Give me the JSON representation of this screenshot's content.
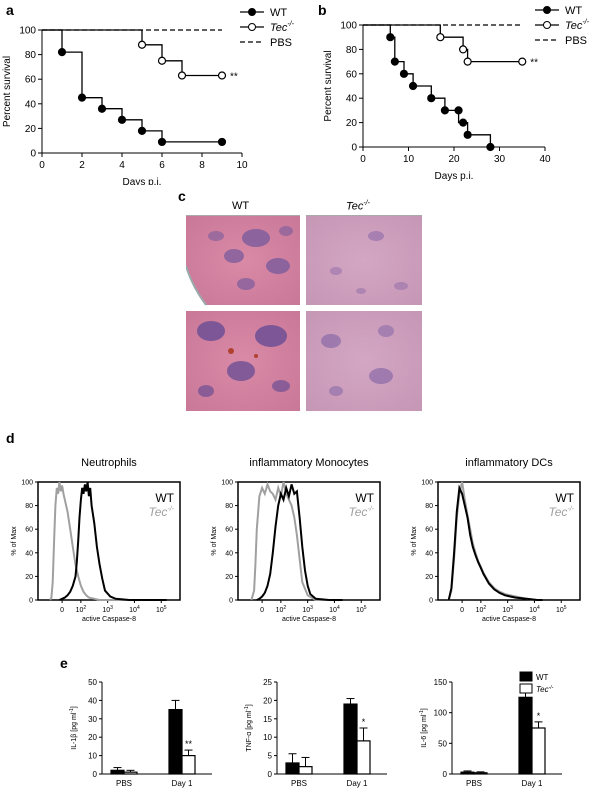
{
  "panel_labels": {
    "a": "a",
    "b": "b",
    "c": "c",
    "d": "d",
    "e": "e"
  },
  "legend_km": {
    "wt": "WT",
    "tec": "Tec",
    "tec_sup": "-/-",
    "pbs": "PBS"
  },
  "chart_data": [
    {
      "id": "a",
      "type": "line",
      "title": "",
      "xlabel": "Days p.i.",
      "ylabel": "Percent survival",
      "xlim": [
        0,
        10
      ],
      "ylim": [
        0,
        100
      ],
      "xticks": [
        0,
        2,
        4,
        6,
        8,
        10
      ],
      "yticks": [
        0,
        20,
        40,
        60,
        80,
        100
      ],
      "significance": "**",
      "series": [
        {
          "name": "WT",
          "style": "solid-filled",
          "steps": [
            [
              0,
              100
            ],
            [
              1,
              100
            ],
            [
              1,
              82
            ],
            [
              2,
              82
            ],
            [
              2,
              45
            ],
            [
              3,
              45
            ],
            [
              3,
              36
            ],
            [
              4,
              36
            ],
            [
              4,
              27
            ],
            [
              5,
              27
            ],
            [
              5,
              18
            ],
            [
              6,
              18
            ],
            [
              6,
              9
            ],
            [
              9,
              9
            ]
          ],
          "points": [
            [
              1,
              82
            ],
            [
              2,
              45
            ],
            [
              3,
              36
            ],
            [
              4,
              27
            ],
            [
              5,
              18
            ],
            [
              6,
              9
            ],
            [
              9,
              9
            ]
          ]
        },
        {
          "name": "Tec-/-",
          "style": "solid-open",
          "steps": [
            [
              0,
              100
            ],
            [
              5,
              100
            ],
            [
              5,
              88
            ],
            [
              6,
              88
            ],
            [
              6,
              75
            ],
            [
              7,
              75
            ],
            [
              7,
              63
            ],
            [
              9,
              63
            ]
          ],
          "points": [
            [
              5,
              88
            ],
            [
              6,
              75
            ],
            [
              7,
              63
            ],
            [
              9,
              63
            ]
          ]
        },
        {
          "name": "PBS",
          "style": "dashed",
          "steps": [
            [
              0,
              100
            ],
            [
              9,
              100
            ]
          ],
          "points": []
        }
      ]
    },
    {
      "id": "b",
      "type": "line",
      "title": "",
      "xlabel": "Days p.i.",
      "ylabel": "Percent survival",
      "xlim": [
        0,
        40
      ],
      "ylim": [
        0,
        100
      ],
      "xticks": [
        0,
        10,
        20,
        30,
        40
      ],
      "yticks": [
        0,
        20,
        40,
        60,
        80,
        100
      ],
      "significance": "**",
      "series": [
        {
          "name": "WT",
          "style": "solid-filled",
          "steps": [
            [
              0,
              100
            ],
            [
              6,
              100
            ],
            [
              6,
              90
            ],
            [
              7,
              90
            ],
            [
              7,
              70
            ],
            [
              9,
              70
            ],
            [
              9,
              60
            ],
            [
              11,
              60
            ],
            [
              11,
              50
            ],
            [
              15,
              50
            ],
            [
              15,
              40
            ],
            [
              18,
              40
            ],
            [
              18,
              30
            ],
            [
              21,
              30
            ],
            [
              21,
              20
            ],
            [
              23,
              20
            ],
            [
              23,
              10
            ],
            [
              28,
              10
            ],
            [
              28,
              0
            ]
          ],
          "points": [
            [
              6,
              90
            ],
            [
              7,
              70
            ],
            [
              9,
              60
            ],
            [
              11,
              50
            ],
            [
              15,
              40
            ],
            [
              18,
              30
            ],
            [
              21,
              30
            ],
            [
              22,
              20
            ],
            [
              23,
              10
            ],
            [
              28,
              0
            ]
          ]
        },
        {
          "name": "Tec-/-",
          "style": "solid-open",
          "steps": [
            [
              0,
              100
            ],
            [
              17,
              100
            ],
            [
              17,
              90
            ],
            [
              22,
              90
            ],
            [
              22,
              80
            ],
            [
              23,
              80
            ],
            [
              23,
              70
            ],
            [
              35,
              70
            ]
          ],
          "points": [
            [
              17,
              90
            ],
            [
              22,
              80
            ],
            [
              23,
              70
            ],
            [
              35,
              70
            ]
          ]
        },
        {
          "name": "PBS",
          "style": "dashed",
          "steps": [
            [
              0,
              100
            ],
            [
              35,
              100
            ]
          ],
          "points": []
        }
      ]
    },
    {
      "id": "d1",
      "type": "line",
      "title": "Neutrophils",
      "xlabel": "active Caspase-8",
      "ylabel": "% of Max",
      "yticks": [
        0,
        20,
        40,
        60,
        80,
        100
      ],
      "xtick_labels": [
        {
          "base": "0",
          "sup": ""
        },
        {
          "base": "10",
          "sup": "2"
        },
        {
          "base": "10",
          "sup": "3"
        },
        {
          "base": "10",
          "sup": "4"
        },
        {
          "base": "10",
          "sup": "5"
        }
      ],
      "legend": [
        {
          "name": "WT",
          "color": "#000000"
        },
        {
          "name": "Tec",
          "sup": "-/-",
          "color": "#a0a0a0"
        }
      ],
      "series": [
        {
          "name": "WT",
          "color": "#000000",
          "x": [
            -0.1,
            0,
            0.1,
            0.2,
            0.3,
            0.4,
            0.5,
            0.55,
            0.6,
            0.65,
            0.7,
            0.75,
            0.8,
            0.85,
            0.9,
            0.95,
            1.0,
            1.05,
            1.1,
            1.2,
            1.3,
            1.4,
            1.5,
            1.6,
            1.8,
            2.0,
            2.5,
            3.0,
            3.5,
            3.9
          ],
          "y": [
            0,
            1,
            2,
            4,
            7,
            12,
            20,
            32,
            50,
            70,
            85,
            95,
            90,
            98,
            92,
            100,
            88,
            95,
            80,
            65,
            45,
            30,
            18,
            8,
            3,
            1,
            0,
            0,
            0,
            0
          ]
        },
        {
          "name": "Tec-/-",
          "color": "#a0a0a0",
          "x": [
            -0.45,
            -0.4,
            -0.35,
            -0.3,
            -0.25,
            -0.2,
            -0.15,
            -0.1,
            -0.05,
            0,
            0.05,
            0.1,
            0.2,
            0.3,
            0.4,
            0.5,
            0.6,
            0.7,
            0.8,
            0.9,
            1.0,
            1.2,
            1.4,
            1.6,
            2.0,
            2.5,
            3.0
          ],
          "y": [
            0,
            2,
            15,
            50,
            80,
            95,
            90,
            100,
            92,
            97,
            90,
            85,
            75,
            60,
            45,
            30,
            20,
            12,
            7,
            4,
            2,
            1,
            0,
            0,
            0,
            0,
            0
          ]
        }
      ]
    },
    {
      "id": "d2",
      "type": "line",
      "title": "inflammatory Monocytes",
      "xlabel": "active Caspase-8",
      "ylabel": "% of Max",
      "yticks": [
        0,
        20,
        40,
        60,
        80,
        100
      ],
      "xtick_labels": [
        {
          "base": "0",
          "sup": ""
        },
        {
          "base": "10",
          "sup": "2"
        },
        {
          "base": "10",
          "sup": "3"
        },
        {
          "base": "10",
          "sup": "4"
        },
        {
          "base": "10",
          "sup": "5"
        }
      ],
      "legend": [
        {
          "name": "WT",
          "color": "#000000"
        },
        {
          "name": "Tec",
          "sup": "-/-",
          "color": "#a0a0a0"
        }
      ],
      "series": [
        {
          "name": "WT",
          "color": "#000000",
          "x": [
            -0.2,
            -0.1,
            0,
            0.1,
            0.2,
            0.3,
            0.4,
            0.5,
            0.6,
            0.7,
            0.8,
            0.9,
            1.0,
            1.1,
            1.2,
            1.3,
            1.4,
            1.5,
            1.6,
            1.7,
            1.8,
            2.0,
            2.5,
            3.0
          ],
          "y": [
            0,
            1,
            3,
            6,
            12,
            22,
            40,
            62,
            80,
            90,
            85,
            95,
            88,
            98,
            90,
            92,
            70,
            45,
            25,
            12,
            5,
            1,
            0,
            0
          ]
        },
        {
          "name": "Tec-/-",
          "color": "#a0a0a0",
          "x": [
            -0.4,
            -0.3,
            -0.25,
            -0.2,
            -0.1,
            0,
            0.1,
            0.2,
            0.3,
            0.4,
            0.5,
            0.6,
            0.7,
            0.8,
            0.9,
            1.0,
            1.1,
            1.2,
            1.3,
            1.4,
            1.5,
            1.7,
            2.0,
            2.5
          ],
          "y": [
            0,
            8,
            30,
            60,
            88,
            95,
            90,
            98,
            92,
            90,
            85,
            95,
            88,
            100,
            90,
            85,
            80,
            70,
            55,
            35,
            15,
            4,
            0,
            0
          ]
        }
      ]
    },
    {
      "id": "d3",
      "type": "line",
      "title": "inflammatory DCs",
      "xlabel": "active Caspase-8",
      "ylabel": "% of Max",
      "yticks": [
        0,
        20,
        40,
        60,
        80,
        100
      ],
      "xtick_labels": [
        {
          "base": "0",
          "sup": ""
        },
        {
          "base": "10",
          "sup": "2"
        },
        {
          "base": "10",
          "sup": "3"
        },
        {
          "base": "10",
          "sup": "4"
        },
        {
          "base": "10",
          "sup": "5"
        }
      ],
      "legend": [
        {
          "name": "WT",
          "color": "#000000"
        },
        {
          "name": "Tec",
          "sup": "-/-",
          "color": "#a0a0a0"
        }
      ],
      "series": [
        {
          "name": "WT",
          "color": "#000000",
          "x": [
            -0.5,
            -0.4,
            -0.3,
            -0.2,
            -0.1,
            0,
            0.1,
            0.2,
            0.3,
            0.4,
            0.5,
            0.6,
            0.7,
            0.8,
            0.9,
            1.0,
            1.2,
            1.4,
            1.6,
            1.8,
            2.0,
            2.4,
            2.8,
            3.0
          ],
          "y": [
            0,
            10,
            40,
            75,
            95,
            90,
            80,
            70,
            55,
            45,
            38,
            32,
            27,
            22,
            18,
            14,
            9,
            6,
            4,
            3,
            2,
            1,
            0,
            0
          ]
        },
        {
          "name": "Tec-/-",
          "color": "#a0a0a0",
          "x": [
            -0.5,
            -0.4,
            -0.3,
            -0.2,
            -0.1,
            0,
            0.1,
            0.2,
            0.3,
            0.4,
            0.5,
            0.6,
            0.7,
            0.8,
            0.9,
            1.0,
            1.2,
            1.4,
            1.6,
            1.8,
            2.0,
            2.4,
            2.8,
            3.0
          ],
          "y": [
            0,
            8,
            35,
            70,
            90,
            100,
            85,
            72,
            60,
            48,
            40,
            33,
            28,
            23,
            19,
            15,
            10,
            7,
            5,
            4,
            3,
            1,
            0,
            0
          ]
        }
      ]
    },
    {
      "id": "e1",
      "type": "bar",
      "ylabel_html": "IL-1β [pg ml<sup>-1</sup>]",
      "categories": [
        "PBS",
        "Day 1"
      ],
      "ylim": [
        0,
        50
      ],
      "yticks": [
        0,
        10,
        20,
        30,
        40,
        50
      ],
      "significance": "**",
      "series": [
        {
          "name": "WT",
          "fill": "#000000",
          "values": [
            2,
            35
          ],
          "errors": [
            1.5,
            5
          ]
        },
        {
          "name": "Tec-/-",
          "fill": "#ffffff",
          "values": [
            1,
            10
          ],
          "errors": [
            1,
            3
          ]
        }
      ]
    },
    {
      "id": "e2",
      "type": "bar",
      "ylabel_html": "TNF-α [pg ml<sup>-1</sup>]",
      "categories": [
        "PBS",
        "Day 1"
      ],
      "ylim": [
        0,
        25
      ],
      "yticks": [
        0,
        5,
        10,
        15,
        20,
        25
      ],
      "significance": "*",
      "series": [
        {
          "name": "WT",
          "fill": "#000000",
          "values": [
            3,
            19
          ],
          "errors": [
            2.5,
            1.5
          ]
        },
        {
          "name": "Tec-/-",
          "fill": "#ffffff",
          "values": [
            2,
            9
          ],
          "errors": [
            2.5,
            3.5
          ]
        }
      ]
    },
    {
      "id": "e3",
      "type": "bar",
      "ylabel_html": "IL-6 [pg ml<sup>-1</sup>]",
      "categories": [
        "PBS",
        "Day 1"
      ],
      "ylim": [
        0,
        150
      ],
      "yticks": [
        0,
        50,
        100,
        150
      ],
      "significance": "*",
      "legend": [
        {
          "name": "WT",
          "fill": "#000000"
        },
        {
          "name": "Tec",
          "sup": "-/-",
          "fill": "#ffffff"
        }
      ],
      "series": [
        {
          "name": "WT",
          "fill": "#000000",
          "values": [
            3,
            125
          ],
          "errors": [
            2,
            12
          ]
        },
        {
          "name": "Tec-/-",
          "fill": "#ffffff",
          "values": [
            2,
            75
          ],
          "errors": [
            1.5,
            10
          ]
        }
      ]
    }
  ],
  "histology": {
    "col1": "WT",
    "col2": "Tec",
    "col2_sup": "-/-"
  }
}
